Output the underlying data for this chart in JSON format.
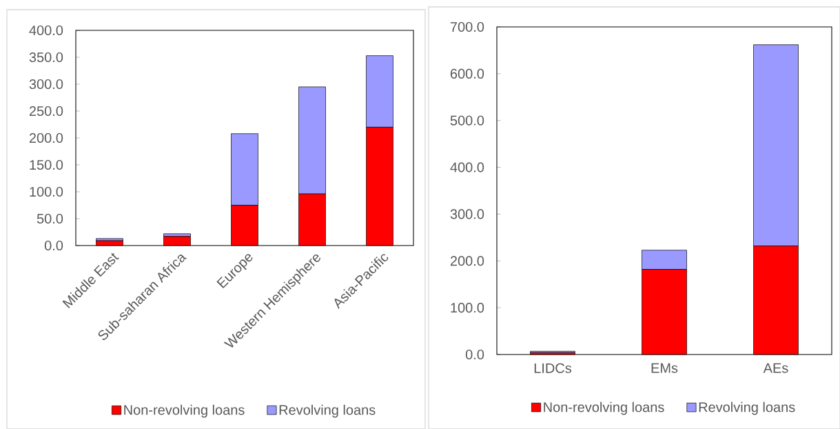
{
  "chart_data": [
    {
      "type": "bar",
      "stacked": true,
      "categories": [
        "Middle East",
        "Sub-saharan Africa",
        "Europe",
        "Western Hemisphere",
        "Asia-Pacific"
      ],
      "series": [
        {
          "name": "Non-revolving loans",
          "color": "#ff0000",
          "values": [
            9,
            17,
            75,
            96,
            220
          ]
        },
        {
          "name": "Revolving loans",
          "color": "#9999ff",
          "values": [
            4,
            5,
            133,
            199,
            133
          ]
        }
      ],
      "ylim": [
        0,
        400
      ],
      "yticks": [
        {
          "value": 0,
          "label": "0.0"
        },
        {
          "value": 50,
          "label": "50.0"
        },
        {
          "value": 100,
          "label": "100.0"
        },
        {
          "value": 150,
          "label": "150.0"
        },
        {
          "value": 200,
          "label": "200.0"
        },
        {
          "value": 250,
          "label": "250.0"
        },
        {
          "value": 300,
          "label": "300.0"
        },
        {
          "value": 350,
          "label": "350.0"
        },
        {
          "value": 400,
          "label": "400.0"
        }
      ],
      "legend": "bottom"
    },
    {
      "type": "bar",
      "stacked": true,
      "categories": [
        "LIDCs",
        "EMs",
        "AEs"
      ],
      "series": [
        {
          "name": "Non-revolving loans",
          "color": "#ff0000",
          "values": [
            4,
            182,
            232
          ]
        },
        {
          "name": "Revolving loans",
          "color": "#9999ff",
          "values": [
            3,
            41,
            430
          ]
        }
      ],
      "ylim": [
        0,
        700
      ],
      "yticks": [
        {
          "value": 0,
          "label": "0.0"
        },
        {
          "value": 100,
          "label": "100.0"
        },
        {
          "value": 200,
          "label": "200.0"
        },
        {
          "value": 300,
          "label": "300.0"
        },
        {
          "value": 400,
          "label": "400.0"
        },
        {
          "value": 500,
          "label": "500.0"
        },
        {
          "value": 600,
          "label": "600.0"
        },
        {
          "value": 700,
          "label": "700.0"
        }
      ],
      "legend": "bottom"
    }
  ]
}
